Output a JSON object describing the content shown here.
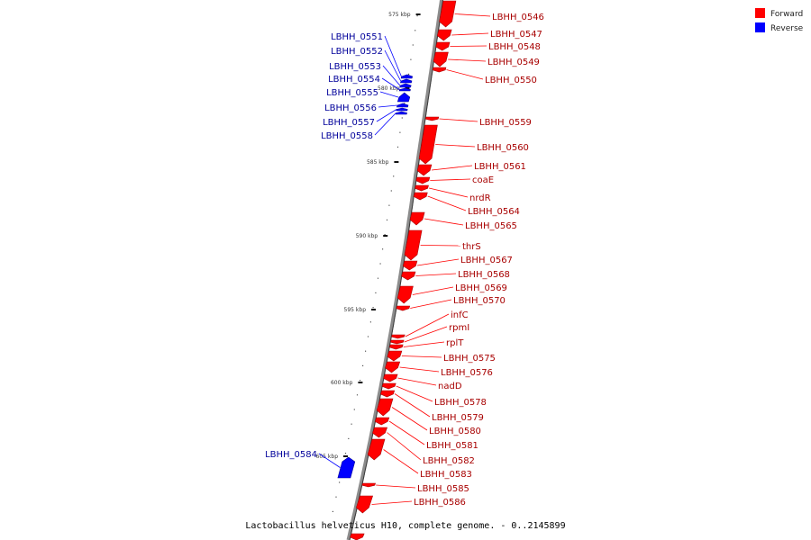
{
  "caption": "Lactobacillus helveticus H10, complete genome. - 0..2145899",
  "legend": {
    "forward": {
      "label": "Forward",
      "color": "#ff0000"
    },
    "reverse": {
      "label": "Reverse",
      "color": "#0000ff"
    }
  },
  "ticks": [
    "575 kbp",
    "580 kbp",
    "585 kbp",
    "590 kbp",
    "595 kbp",
    "600 kbp",
    "605 kbp"
  ],
  "genes_forward": [
    "LBHH_0546",
    "LBHH_0547",
    "LBHH_0548",
    "LBHH_0549",
    "LBHH_0550",
    "LBHH_0559",
    "LBHH_0560",
    "LBHH_0561",
    "coaE",
    "nrdR",
    "LBHH_0564",
    "LBHH_0565",
    "thrS",
    "LBHH_0567",
    "LBHH_0568",
    "LBHH_0569",
    "LBHH_0570",
    "infC",
    "rpmI",
    "rplT",
    "LBHH_0575",
    "LBHH_0576",
    "nadD",
    "LBHH_0578",
    "LBHH_0579",
    "LBHH_0580",
    "LBHH_0581",
    "LBHH_0582",
    "LBHH_0583",
    "LBHH_0585",
    "LBHH_0586"
  ],
  "genes_reverse": [
    "LBHH_0551",
    "LBHH_0552",
    "LBHH_0553",
    "LBHH_0554",
    "LBHH_0555",
    "LBHH_0556",
    "LBHH_0557",
    "LBHH_0558",
    "LBHH_0584"
  ]
}
